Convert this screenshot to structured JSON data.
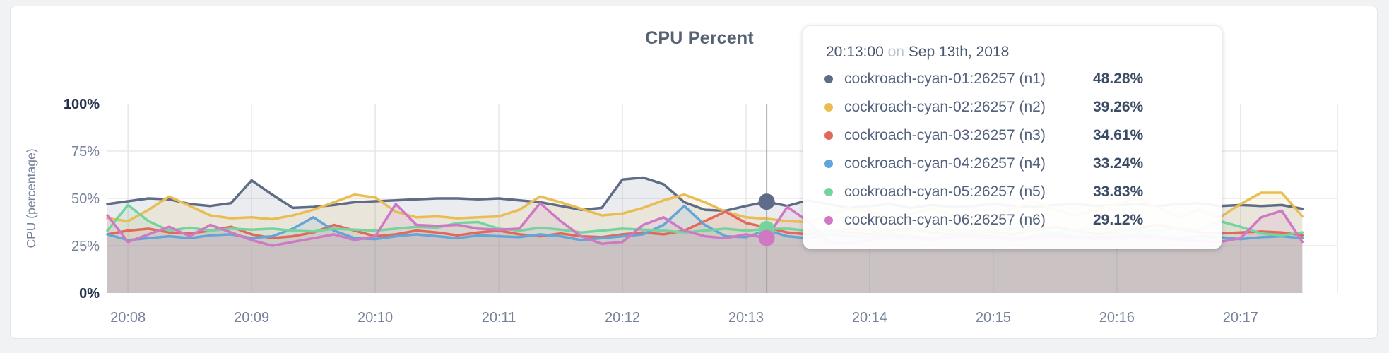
{
  "chart_data": {
    "type": "area",
    "title": "CPU Percent",
    "ylabel": "CPU (percentage)",
    "xlabel": "",
    "ylim": [
      0,
      100
    ],
    "grid": true,
    "y_ticks": [
      {
        "value": 0,
        "label": "0%",
        "emphasis": true
      },
      {
        "value": 25,
        "label": "25%",
        "emphasis": false
      },
      {
        "value": 50,
        "label": "50%",
        "emphasis": false
      },
      {
        "value": 75,
        "label": "75%",
        "emphasis": false
      },
      {
        "value": 100,
        "label": "100%",
        "emphasis": true
      }
    ],
    "x_start_time": "20:07:50",
    "x_interval_seconds": 10,
    "x_ticks": [
      {
        "index": 1,
        "label": "20:08"
      },
      {
        "index": 7,
        "label": "20:09"
      },
      {
        "index": 13,
        "label": "20:10"
      },
      {
        "index": 19,
        "label": "20:11"
      },
      {
        "index": 25,
        "label": "20:12"
      },
      {
        "index": 31,
        "label": "20:13"
      },
      {
        "index": 37,
        "label": "20:14"
      },
      {
        "index": 43,
        "label": "20:15"
      },
      {
        "index": 49,
        "label": "20:16"
      },
      {
        "index": 55,
        "label": "20:17"
      }
    ],
    "series": [
      {
        "id": "n1",
        "name": "cockroach-cyan-01:26257 (n1)",
        "color": "#5f6c87",
        "values": [
          47,
          48.5,
          50,
          49.5,
          47,
          46,
          47.5,
          59.5,
          52,
          45,
          45.5,
          46.5,
          48,
          48.5,
          49,
          49.5,
          50,
          50,
          49.5,
          50,
          49,
          48,
          46,
          44,
          45,
          60,
          61,
          57.5,
          48,
          44,
          43.5,
          46,
          48.28,
          46,
          49,
          47,
          45,
          46,
          47,
          45,
          46.5,
          45.5,
          46,
          47,
          46,
          45.5,
          46.5,
          47,
          46,
          46.5,
          47,
          46,
          47,
          47.5,
          46,
          46.5,
          46,
          46.5,
          44.5
        ]
      },
      {
        "id": "n2",
        "name": "cockroach-cyan-02:26257 (n2)",
        "color": "#eabd53",
        "values": [
          39.5,
          38,
          44,
          51,
          46,
          41,
          39.5,
          40,
          39,
          41,
          44,
          48,
          52,
          50.5,
          43,
          40,
          40.5,
          39.5,
          40,
          40.5,
          44,
          51,
          48,
          44.5,
          41,
          42,
          45,
          49,
          52,
          48,
          43,
          40,
          39.26,
          38,
          37.5,
          41,
          45,
          43,
          40,
          42,
          44.5,
          41,
          39,
          41,
          45,
          48.5,
          44,
          41,
          44,
          47,
          50,
          45,
          40,
          44,
          40,
          47,
          53,
          53,
          40.5
        ]
      },
      {
        "id": "n3",
        "name": "cockroach-cyan-03:26257 (n3)",
        "color": "#e3685c",
        "values": [
          31,
          33,
          34,
          32,
          31.5,
          33,
          35,
          31,
          29,
          30,
          32,
          36,
          33,
          30,
          31,
          33,
          32,
          30.5,
          32,
          33,
          31,
          30,
          31.5,
          30,
          29.5,
          31,
          32,
          31,
          33,
          38,
          43,
          37,
          34.61,
          32,
          31,
          33,
          32,
          31,
          33,
          34,
          32,
          31,
          33,
          32,
          31,
          33.5,
          35,
          33,
          31,
          32,
          34,
          36,
          34,
          32,
          31.5,
          32,
          32.5,
          32,
          30.5
        ]
      },
      {
        "id": "n4",
        "name": "cockroach-cyan-04:26257 (n4)",
        "color": "#62a5d8",
        "values": [
          31,
          28,
          29,
          30,
          29,
          30.5,
          31,
          29,
          30,
          34,
          40,
          33,
          29,
          28.5,
          30,
          31,
          30,
          29,
          30.5,
          30,
          29.5,
          31,
          30,
          28,
          29,
          30,
          31,
          36,
          46,
          36,
          30,
          29.5,
          33.24,
          30,
          29,
          31,
          30,
          29.5,
          31,
          30,
          29,
          30.5,
          31,
          30,
          29,
          30,
          31.5,
          30,
          29.5,
          30,
          31,
          30,
          29,
          30,
          29.5,
          28.5,
          29.5,
          30,
          29
        ]
      },
      {
        "id": "n5",
        "name": "cockroach-cyan-05:26257 (n5)",
        "color": "#75d39e",
        "values": [
          33,
          46.5,
          38,
          33,
          34.5,
          33,
          34,
          33.5,
          34,
          33,
          32.5,
          34,
          33.5,
          33,
          34,
          35,
          34.5,
          37,
          37.5,
          34,
          33,
          34.5,
          33.5,
          32,
          33,
          34,
          33.5,
          33,
          32,
          33,
          34,
          33,
          33.83,
          34,
          33,
          32.5,
          34,
          33,
          32,
          33.5,
          34,
          33,
          32.5,
          33,
          34,
          33,
          32,
          33.5,
          34,
          33,
          32.5,
          33,
          34,
          33.5,
          38,
          35,
          31.5,
          30.5,
          32
        ]
      },
      {
        "id": "n6",
        "name": "cockroach-cyan-06:26257 (n6)",
        "color": "#cf79c5",
        "values": [
          41,
          27,
          31,
          35,
          30,
          36,
          32,
          28,
          25,
          27,
          29,
          31,
          28,
          30,
          47,
          36,
          35.5,
          36,
          34,
          33.5,
          34,
          47.5,
          38,
          30,
          26,
          27,
          36,
          40,
          33,
          30,
          29,
          31,
          29.12,
          45.5,
          38,
          27,
          26,
          28,
          30,
          29,
          28,
          29.5,
          30,
          29,
          28,
          29,
          30,
          29,
          28.5,
          29,
          30,
          29,
          28,
          27.5,
          27,
          29,
          40,
          43.5,
          27
        ]
      }
    ],
    "hover": {
      "index": 32,
      "time": "20:13:00",
      "marker_series": [
        "n5",
        "n6",
        "n1"
      ]
    }
  },
  "tooltip": {
    "time": "20:13:00",
    "on_word": "on",
    "date": "Sep 13th, 2018",
    "rows": [
      {
        "name": "cockroach-cyan-01:26257 (n1)",
        "value": "48.28%",
        "color": "#5f6c87"
      },
      {
        "name": "cockroach-cyan-02:26257 (n2)",
        "value": "39.26%",
        "color": "#eabd53"
      },
      {
        "name": "cockroach-cyan-03:26257 (n3)",
        "value": "34.61%",
        "color": "#e3685c"
      },
      {
        "name": "cockroach-cyan-04:26257 (n4)",
        "value": "33.24%",
        "color": "#62a5d8"
      },
      {
        "name": "cockroach-cyan-05:26257 (n5)",
        "value": "33.83%",
        "color": "#75d39e"
      },
      {
        "name": "cockroach-cyan-06:26257 (n6)",
        "value": "29.12%",
        "color": "#cf79c5"
      }
    ]
  },
  "colors": {
    "grid": "#e8e8e8",
    "hover_line": "#9b9b9b",
    "tick_text": "#76819a",
    "tick_text_emphasis": "#22304b",
    "axis_label_text": "#76819a",
    "title_text": "#566274"
  }
}
